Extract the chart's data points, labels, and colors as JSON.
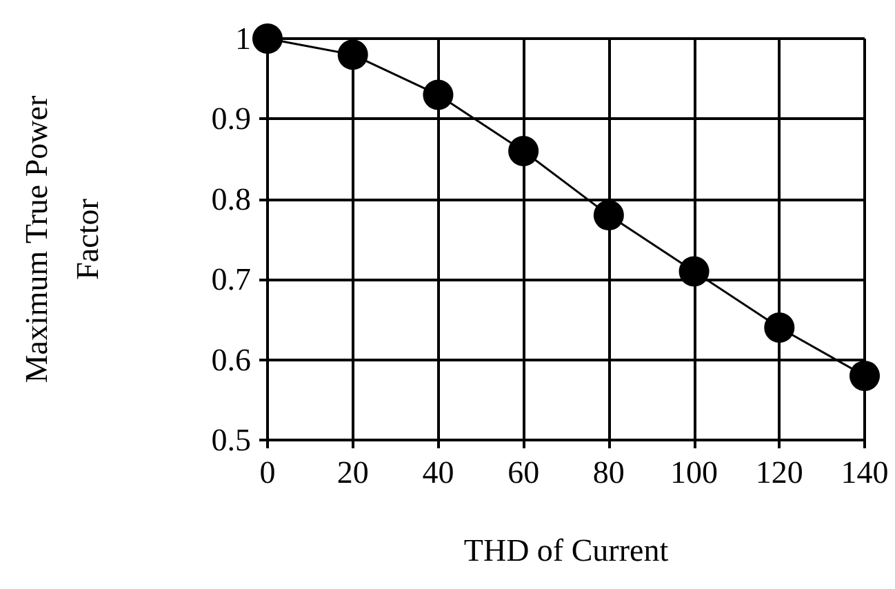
{
  "chart_data": {
    "type": "line",
    "xlabel": "THD of Current",
    "ylabel": "Maximum True Power Factor",
    "x": [
      0,
      20,
      40,
      60,
      80,
      100,
      120,
      140
    ],
    "series": [
      {
        "color": "#000000",
        "values": [
          1,
          0.98,
          0.93,
          0.86,
          0.78,
          0.71,
          0.64,
          0.58
        ]
      }
    ],
    "xlim": [
      0,
      140
    ],
    "xticks": [
      0,
      20,
      40,
      60,
      80,
      100,
      120,
      140
    ],
    "ylim": [
      0.5,
      1
    ],
    "yticks": [
      0.5,
      0.6,
      0.7,
      0.8,
      0.9,
      1
    ],
    "grid": true,
    "marker": "circle",
    "line_style": "solid"
  }
}
